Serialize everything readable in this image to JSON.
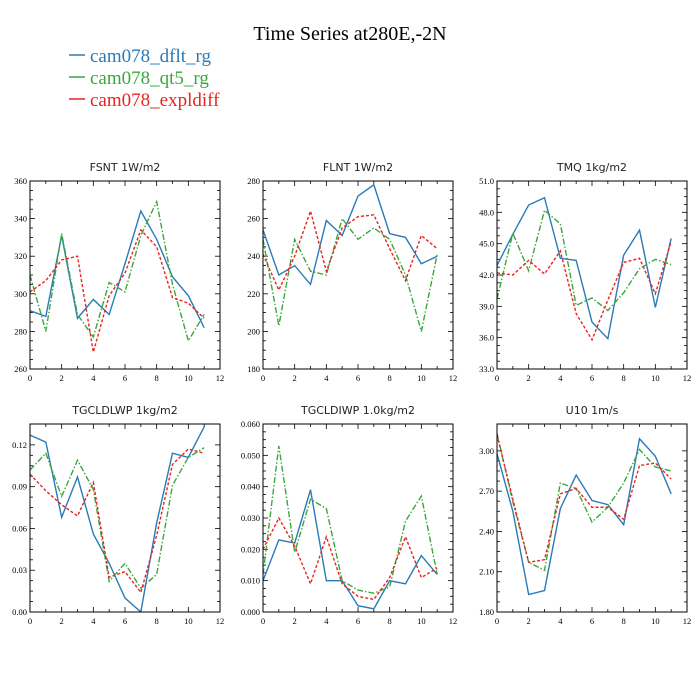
{
  "figure_title": "Time Series at280E,-2N",
  "legend": [
    {
      "label": "cam078_dflt_rg",
      "color": "#2a7ab8"
    },
    {
      "label": "cam078_qt5_rg",
      "color": "#3ba73b"
    },
    {
      "label": "cam078_expldiff",
      "color": "#e8241f"
    }
  ],
  "chart_data": [
    {
      "type": "line",
      "title": "FSNT   1W/m2",
      "xlim": [
        0,
        12
      ],
      "ylim": [
        260,
        360
      ],
      "xticks": [
        0,
        2,
        4,
        6,
        8,
        10,
        12
      ],
      "yticks": [
        260,
        280,
        300,
        320,
        340,
        360
      ],
      "ytick_labels": [
        "260",
        "280",
        "300",
        "320",
        "340",
        "360"
      ],
      "x": [
        0,
        1,
        2,
        3,
        4,
        5,
        6,
        7,
        8,
        9,
        10,
        11
      ],
      "series": [
        {
          "name": "cam078_dflt_rg",
          "values": [
            291,
            288,
            331,
            287,
            297,
            289,
            316,
            344,
            329,
            309,
            299,
            282
          ]
        },
        {
          "name": "cam078_qt5_rg",
          "values": [
            310,
            280,
            332,
            289,
            277,
            306,
            301,
            331,
            349,
            305,
            275,
            289
          ]
        },
        {
          "name": "cam078_expldiff",
          "values": [
            301,
            307,
            318,
            320,
            269,
            299,
            311,
            334,
            325,
            298,
            295,
            287
          ]
        }
      ]
    },
    {
      "type": "line",
      "title": "FLNT   1W/m2",
      "xlim": [
        0,
        12
      ],
      "ylim": [
        180,
        280
      ],
      "xticks": [
        0,
        2,
        4,
        6,
        8,
        10,
        12
      ],
      "yticks": [
        180,
        200,
        220,
        240,
        260,
        280
      ],
      "ytick_labels": [
        "180",
        "200",
        "220",
        "240",
        "260",
        "280"
      ],
      "x": [
        0,
        1,
        2,
        3,
        4,
        5,
        6,
        7,
        8,
        9,
        10,
        11
      ],
      "series": [
        {
          "name": "cam078_dflt_rg",
          "values": [
            254,
            230,
            235,
            225,
            259,
            251,
            272,
            278,
            252,
            250,
            236,
            240
          ]
        },
        {
          "name": "cam078_qt5_rg",
          "values": [
            249,
            203,
            249,
            232,
            230,
            260,
            249,
            255,
            249,
            230,
            200,
            241
          ]
        },
        {
          "name": "cam078_expldiff",
          "values": [
            241,
            222,
            240,
            264,
            232,
            255,
            261,
            262,
            244,
            227,
            251,
            244
          ]
        }
      ]
    },
    {
      "type": "line",
      "title": "TMQ   1kg/m2",
      "xlim": [
        0,
        12
      ],
      "ylim": [
        33,
        51
      ],
      "xticks": [
        0,
        2,
        4,
        6,
        8,
        10,
        12
      ],
      "yticks": [
        33,
        36,
        39,
        42,
        45,
        48,
        51
      ],
      "ytick_labels": [
        "33.0",
        "36.0",
        "39.0",
        "42.0",
        "45.0",
        "48.0",
        "51.0"
      ],
      "x": [
        0,
        1,
        2,
        3,
        4,
        5,
        6,
        7,
        8,
        9,
        10,
        11
      ],
      "series": [
        {
          "name": "cam078_dflt_rg",
          "values": [
            42.9,
            45.9,
            48.7,
            49.4,
            43.6,
            43.4,
            37.5,
            35.9,
            43.9,
            46.3,
            38.9,
            45.5
          ]
        },
        {
          "name": "cam078_qt5_rg",
          "values": [
            39.7,
            46.0,
            42.4,
            48.2,
            46.9,
            39.1,
            39.8,
            38.6,
            40.3,
            42.6,
            43.5,
            43.0
          ]
        },
        {
          "name": "cam078_expldiff",
          "values": [
            42.2,
            42.0,
            43.4,
            42.1,
            44.3,
            38.3,
            35.8,
            39.6,
            43.2,
            43.6,
            40.2,
            45.2
          ]
        }
      ]
    },
    {
      "type": "line",
      "title": "TGCLDLWP   1kg/m2",
      "xlim": [
        0,
        12
      ],
      "ylim": [
        0,
        0.135
      ],
      "xticks": [
        0,
        2,
        4,
        6,
        8,
        10,
        12
      ],
      "yticks": [
        0,
        0.03,
        0.06,
        0.09,
        0.12
      ],
      "ytick_labels": [
        "0.00",
        "0.03",
        "0.06",
        "0.09",
        "0.12"
      ],
      "x": [
        0,
        1,
        2,
        3,
        4,
        5,
        6,
        7,
        8,
        9,
        10,
        11
      ],
      "series": [
        {
          "name": "cam078_dflt_rg",
          "values": [
            0.127,
            0.122,
            0.068,
            0.097,
            0.056,
            0.035,
            0.01,
            0.0,
            0.064,
            0.114,
            0.111,
            0.133
          ]
        },
        {
          "name": "cam078_qt5_rg",
          "values": [
            0.102,
            0.114,
            0.083,
            0.109,
            0.088,
            0.022,
            0.035,
            0.017,
            0.027,
            0.091,
            0.111,
            0.118
          ]
        },
        {
          "name": "cam078_expldiff",
          "values": [
            0.099,
            0.087,
            0.077,
            0.069,
            0.093,
            0.025,
            0.029,
            0.014,
            0.055,
            0.106,
            0.117,
            0.114
          ]
        }
      ]
    },
    {
      "type": "line",
      "title": "TGCLDIWP   1.0kg/m2",
      "xlim": [
        0,
        12
      ],
      "ylim": [
        0,
        0.06
      ],
      "xticks": [
        0,
        2,
        4,
        6,
        8,
        10,
        12
      ],
      "yticks": [
        0,
        0.01,
        0.02,
        0.03,
        0.04,
        0.05,
        0.06
      ],
      "ytick_labels": [
        "0.000",
        "0.010",
        "0.020",
        "0.030",
        "0.040",
        "0.050",
        "0.060"
      ],
      "x": [
        0,
        1,
        2,
        3,
        4,
        5,
        6,
        7,
        8,
        9,
        10,
        11
      ],
      "series": [
        {
          "name": "cam078_dflt_rg",
          "values": [
            0.01,
            0.023,
            0.022,
            0.039,
            0.01,
            0.01,
            0.002,
            0.001,
            0.01,
            0.009,
            0.018,
            0.012
          ]
        },
        {
          "name": "cam078_qt5_rg",
          "values": [
            0.012,
            0.053,
            0.019,
            0.036,
            0.033,
            0.01,
            0.007,
            0.006,
            0.008,
            0.029,
            0.037,
            0.012
          ]
        },
        {
          "name": "cam078_expldiff",
          "values": [
            0.02,
            0.03,
            0.021,
            0.009,
            0.024,
            0.009,
            0.005,
            0.004,
            0.011,
            0.024,
            0.011,
            0.014
          ]
        }
      ]
    },
    {
      "type": "line",
      "title": "U10   1m/s",
      "xlim": [
        0,
        12
      ],
      "ylim": [
        1.8,
        3.2
      ],
      "xticks": [
        0,
        2,
        4,
        6,
        8,
        10,
        12
      ],
      "yticks": [
        1.8,
        2.1,
        2.4,
        2.7,
        3.0
      ],
      "ytick_labels": [
        "1.80",
        "2.10",
        "2.40",
        "2.70",
        "3.00"
      ],
      "x": [
        0,
        1,
        2,
        3,
        4,
        5,
        6,
        7,
        8,
        9,
        10,
        11
      ],
      "series": [
        {
          "name": "cam078_dflt_rg",
          "values": [
            2.98,
            2.55,
            1.93,
            1.96,
            2.57,
            2.82,
            2.63,
            2.6,
            2.45,
            3.09,
            2.96,
            2.68
          ]
        },
        {
          "name": "cam078_qt5_rg",
          "values": [
            3.13,
            2.62,
            2.17,
            2.11,
            2.76,
            2.72,
            2.47,
            2.58,
            2.76,
            3.01,
            2.88,
            2.85
          ]
        },
        {
          "name": "cam078_expldiff",
          "values": [
            3.12,
            2.64,
            2.17,
            2.19,
            2.68,
            2.72,
            2.58,
            2.58,
            2.49,
            2.89,
            2.91,
            2.79
          ]
        }
      ]
    }
  ]
}
